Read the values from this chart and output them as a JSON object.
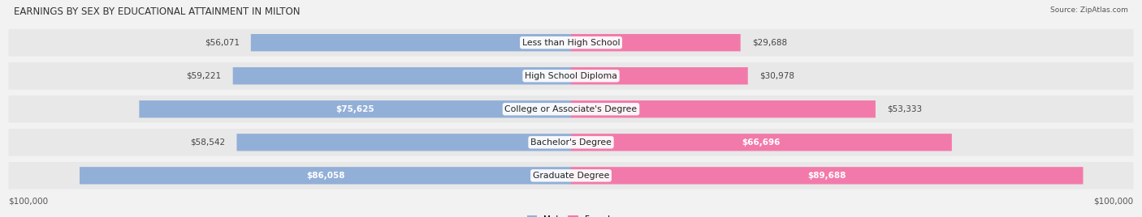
{
  "title": "EARNINGS BY SEX BY EDUCATIONAL ATTAINMENT IN MILTON",
  "source": "Source: ZipAtlas.com",
  "categories": [
    "Less than High School",
    "High School Diploma",
    "College or Associate's Degree",
    "Bachelor's Degree",
    "Graduate Degree"
  ],
  "male_values": [
    56071,
    59221,
    75625,
    58542,
    86058
  ],
  "female_values": [
    29688,
    30978,
    53333,
    66696,
    89688
  ],
  "male_labels": [
    "$56,071",
    "$59,221",
    "$75,625",
    "$58,542",
    "$86,058"
  ],
  "female_labels": [
    "$29,688",
    "$30,978",
    "$53,333",
    "$66,696",
    "$89,688"
  ],
  "male_label_inside": [
    false,
    false,
    true,
    false,
    true
  ],
  "female_label_inside": [
    false,
    false,
    false,
    true,
    true
  ],
  "max_val": 100000,
  "male_color": "#92afd7",
  "female_color": "#f27aaa",
  "row_bg_color": "#e8e8e8",
  "bg_color": "#f2f2f2",
  "title_fontsize": 8.5,
  "label_fontsize": 7.5,
  "cat_fontsize": 7.8,
  "axis_label_fontsize": 7.5,
  "legend_male_color": "#92afd7",
  "legend_female_color": "#f27aaa"
}
